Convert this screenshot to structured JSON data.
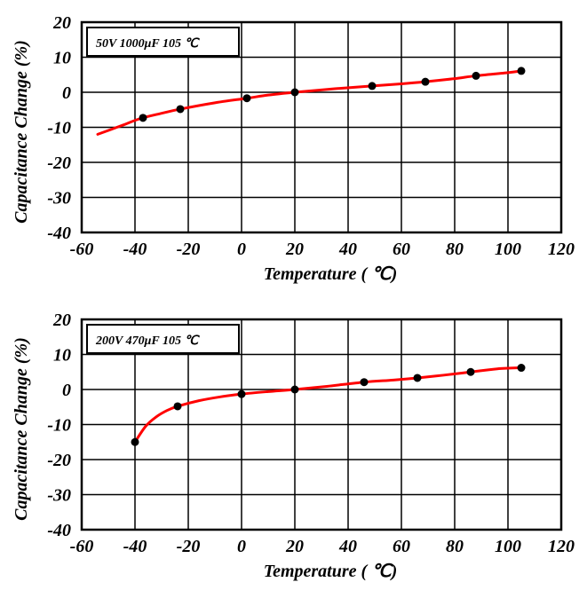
{
  "chart_data": [
    {
      "type": "line",
      "legend_label": "50V 1000μF 105 ℃",
      "xlabel": "Temperature ( ℃)",
      "ylabel": "Capacitance Change (%)",
      "xlim": [
        -60,
        120
      ],
      "ylim": [
        -40,
        20
      ],
      "x_ticks": [
        "-60",
        "-40",
        "-20",
        "0",
        "20",
        "40",
        "60",
        "80",
        "100",
        "120"
      ],
      "y_ticks": [
        "20",
        "10",
        "0",
        "-10",
        "-20",
        "-30",
        "-40"
      ],
      "grid": true,
      "legend_position": "top-left",
      "line_color": "#ff0000",
      "point_color": "#000000",
      "curve": {
        "x": [
          -54,
          -45,
          -38,
          -30,
          -23,
          -10,
          2,
          10,
          20,
          35,
          49,
          60,
          69,
          80,
          88,
          100,
          105
        ],
        "y": [
          -12,
          -9.5,
          -7.5,
          -6.0,
          -4.8,
          -3.0,
          -1.7,
          -0.8,
          0,
          1.0,
          1.8,
          2.4,
          3.0,
          3.9,
          4.7,
          5.6,
          6.1
        ]
      },
      "points": {
        "x": [
          -37,
          -23,
          2,
          20,
          49,
          69,
          88,
          105
        ],
        "y": [
          -7.3,
          -4.8,
          -1.7,
          0,
          1.8,
          3.0,
          4.7,
          6.1
        ]
      }
    },
    {
      "type": "line",
      "legend_label": "200V 470μF 105 ℃",
      "xlabel": "Temperature ( ℃)",
      "ylabel": "Capacitance Change (%)",
      "xlim": [
        -60,
        120
      ],
      "ylim": [
        -40,
        20
      ],
      "x_ticks": [
        "-60",
        "-40",
        "-20",
        "0",
        "20",
        "40",
        "60",
        "80",
        "100",
        "120"
      ],
      "y_ticks": [
        "20",
        "10",
        "0",
        "-10",
        "-20",
        "-30",
        "-40"
      ],
      "grid": true,
      "legend_position": "top-left",
      "line_color": "#ff0000",
      "point_color": "#000000",
      "curve": {
        "x": [
          -40,
          -36,
          -32,
          -28,
          -24,
          -16,
          -8,
          0,
          10,
          20,
          32,
          46,
          57,
          66,
          76,
          86,
          96,
          105
        ],
        "y": [
          -15,
          -10.5,
          -7.8,
          -6.0,
          -4.8,
          -3.2,
          -2.1,
          -1.3,
          -0.6,
          0,
          0.9,
          2.1,
          2.7,
          3.3,
          4.1,
          5.0,
          5.9,
          6.2
        ]
      },
      "points": {
        "x": [
          -40,
          -24,
          0,
          20,
          46,
          66,
          86,
          105
        ],
        "y": [
          -15,
          -4.8,
          -1.3,
          0,
          2.1,
          3.3,
          5.0,
          6.2
        ]
      }
    }
  ]
}
